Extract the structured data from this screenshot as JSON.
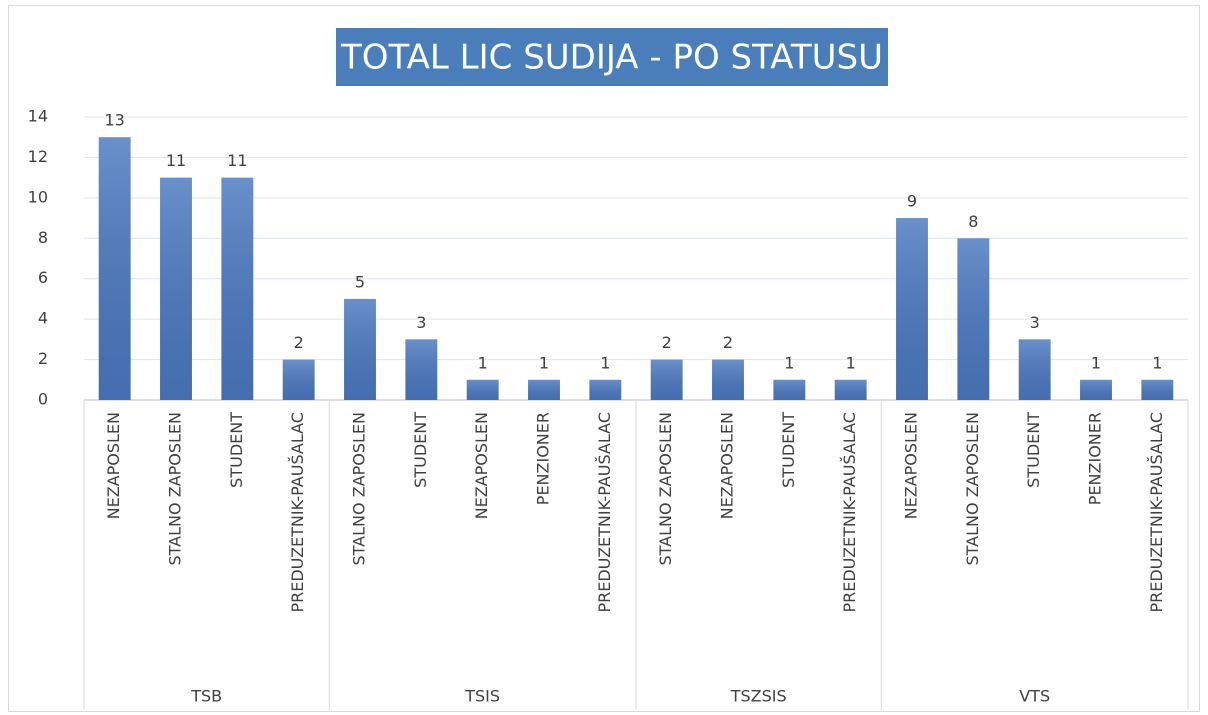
{
  "chart_data": {
    "type": "bar",
    "title": "TOTAL LIC SUDIJA - PO STATUSU",
    "color": "#4a78c0",
    "ylim": [
      0,
      14
    ],
    "yticks": [
      0,
      2,
      4,
      6,
      8,
      10,
      12,
      14
    ],
    "grid": true,
    "groups": [
      {
        "name": "TSB",
        "categories": [
          "NEZAPOSLEN",
          "STALNO ZAPOSLEN",
          "STUDENT",
          "PREDUZETNIK-PAUŠALAC"
        ],
        "values": [
          13,
          11,
          11,
          2
        ]
      },
      {
        "name": "TSIS",
        "categories": [
          "STALNO ZAPOSLEN",
          "STUDENT",
          "NEZAPOSLEN",
          "PENZIONER",
          "PREDUZETNIK-PAUŠALAC"
        ],
        "values": [
          5,
          3,
          1,
          1,
          1
        ]
      },
      {
        "name": "TSZSIS",
        "categories": [
          "STALNO ZAPOSLEN",
          "NEZAPOSLEN",
          "STUDENT",
          "PREDUZETNIK-PAUŠALAC"
        ],
        "values": [
          2,
          2,
          1,
          1
        ]
      },
      {
        "name": "VTS",
        "categories": [
          "NEZAPOSLEN",
          "STALNO ZAPOSLEN",
          "STUDENT",
          "PENZIONER",
          "PREDUZETNIK-PAUŠALAC"
        ],
        "values": [
          9,
          8,
          3,
          1,
          1
        ]
      }
    ]
  }
}
